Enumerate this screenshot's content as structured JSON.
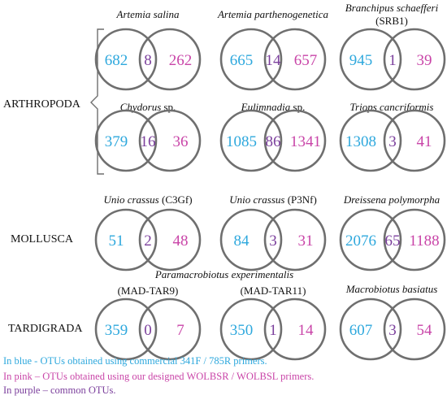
{
  "colors": {
    "blue": "#2ea8dd",
    "pink": "#c945a8",
    "purple": "#7b3f9c",
    "circle": "#6f6f6f",
    "text": "#111111"
  },
  "groups": [
    "ARTHROPODA",
    "MOLLUSCA",
    "TARDIGRADA"
  ],
  "diagrams": [
    {
      "title": "Artemia salina",
      "sub": "",
      "left": "682",
      "mid": "8",
      "right": "262"
    },
    {
      "title": "Artemia parthenogenetica",
      "sub": "",
      "left": "665",
      "mid": "14",
      "right": "657"
    },
    {
      "title": "Branchipus schaefferi",
      "sub": "(SRB1)",
      "left": "945",
      "mid": "1",
      "right": "39"
    },
    {
      "title": "Chydorus",
      "sub": "sp.",
      "left": "379",
      "mid": "16",
      "right": "36"
    },
    {
      "title": "Eulimnadia",
      "sub": "sp.",
      "left": "1085",
      "mid": "86",
      "right": "1341"
    },
    {
      "title": "Triops cancriformis",
      "sub": "",
      "left": "1308",
      "mid": "3",
      "right": "41"
    },
    {
      "title": "Unio crassus",
      "sub": "(C3Gf)",
      "left": "51",
      "mid": "2",
      "right": "48"
    },
    {
      "title": "Unio crassus",
      "sub": "(P3Nf)",
      "left": "84",
      "mid": "3",
      "right": "31"
    },
    {
      "title": "Dreissena polymorpha",
      "sub": "",
      "left": "2076",
      "mid": "65",
      "right": "1188"
    },
    {
      "title": "",
      "sub": "(MAD-TAR9)",
      "left": "359",
      "mid": "0",
      "right": "7"
    },
    {
      "title": "",
      "sub": "(MAD-TAR11)",
      "left": "350",
      "mid": "1",
      "right": "14"
    },
    {
      "title": "Macrobiotus basiatus",
      "sub": "",
      "left": "607",
      "mid": "3",
      "right": "54"
    }
  ],
  "shared_title": "Paramacrobiotus experimentalis",
  "legend": [
    {
      "text": "In blue - OTUs obtained using commercial 341F / 785R primers.",
      "color": "blue"
    },
    {
      "text": "In pink – OTUs obtained using our designed WOLBSR / WOLBSL primers.",
      "color": "pink"
    },
    {
      "text": "In purple – common OTUs.",
      "color": "purple"
    }
  ]
}
